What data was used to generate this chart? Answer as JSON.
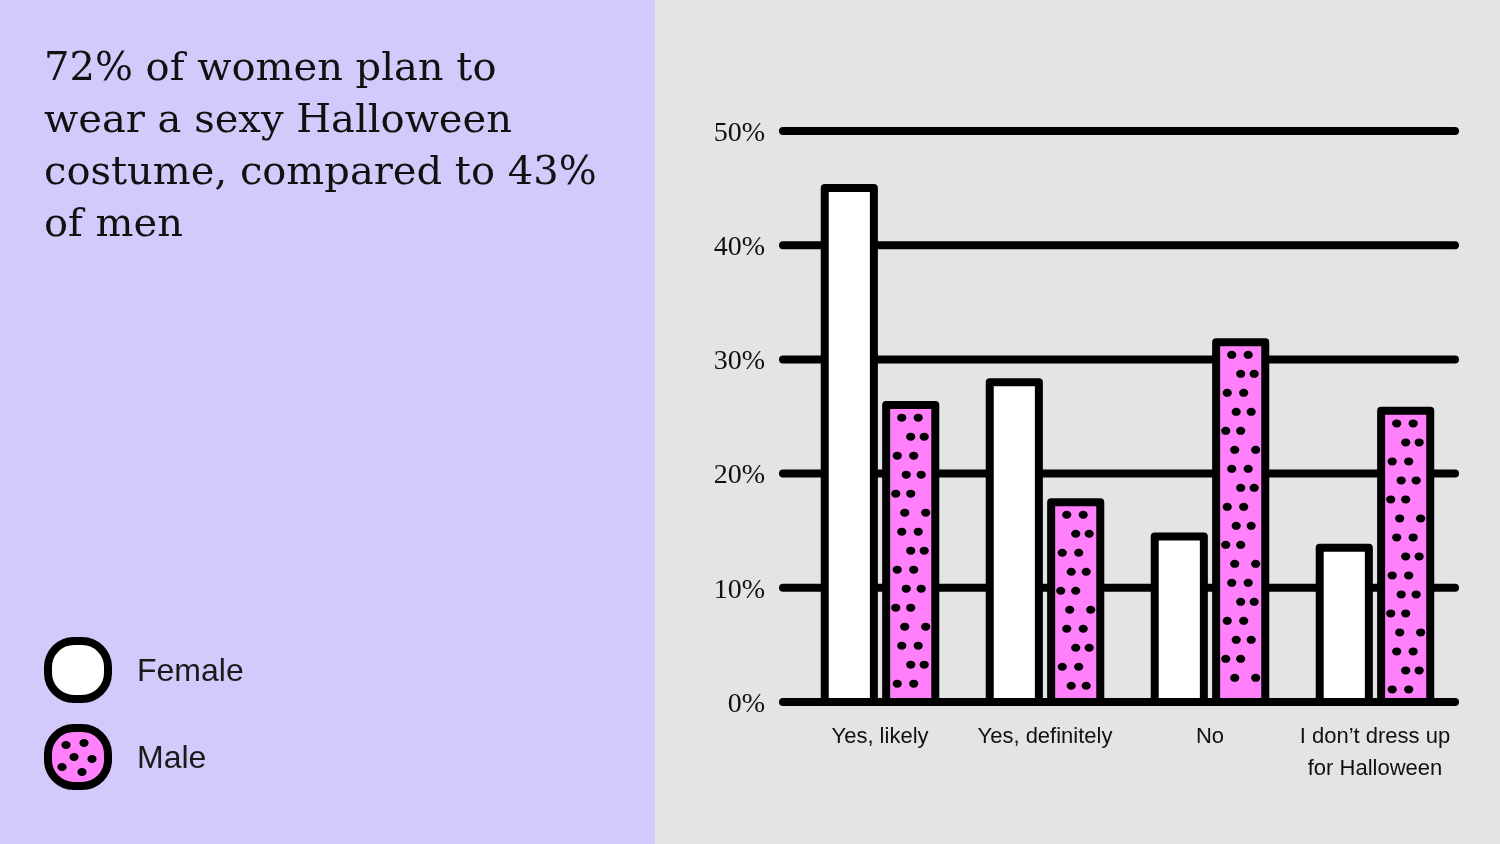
{
  "chart_data": {
    "type": "bar",
    "title": "72% of women plan to wear a sexy Halloween costume, compared to 43% of men",
    "categories": [
      "Yes, likely",
      "Yes, definitely",
      "No",
      "I don’t dress up for Halloween"
    ],
    "series": [
      {
        "name": "Female",
        "color": "#ffffff",
        "values": [
          45,
          28,
          14.5,
          13.5
        ]
      },
      {
        "name": "Male",
        "color": "#ff80fa",
        "values": [
          26,
          17.5,
          31.5,
          25.5
        ]
      }
    ],
    "ylim": [
      0,
      50
    ],
    "yticks": [
      {
        "value": 0,
        "label": "0%"
      },
      {
        "value": 10,
        "label": "10%"
      },
      {
        "value": 20,
        "label": "20%"
      },
      {
        "value": 30,
        "label": "30%"
      },
      {
        "value": 40,
        "label": "40%"
      },
      {
        "value": 50,
        "label": "50%"
      }
    ],
    "grid": "y",
    "legend": "bottom left"
  }
}
